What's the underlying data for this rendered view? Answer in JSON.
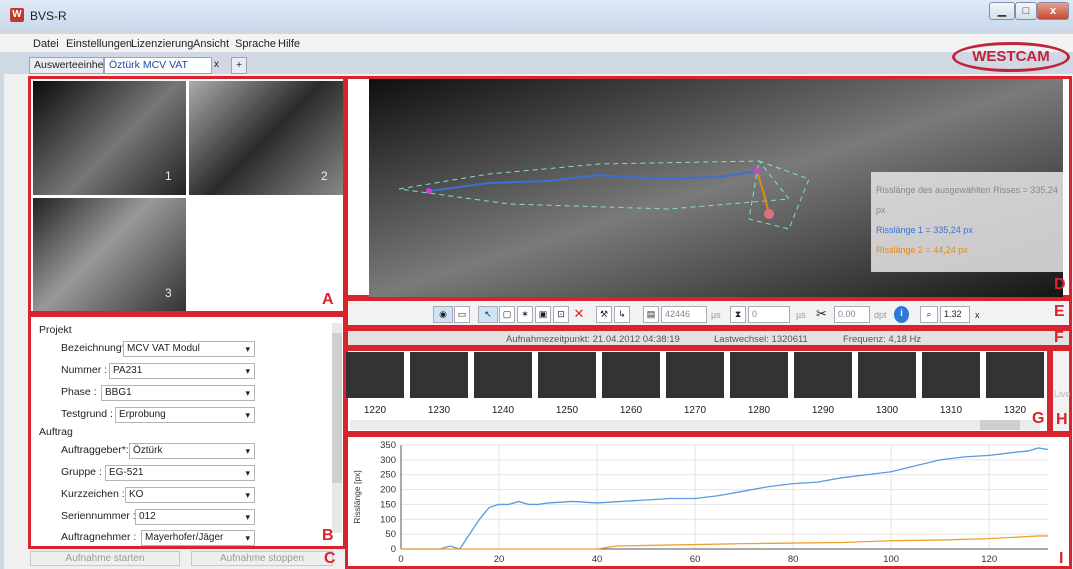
{
  "window": {
    "title": "BVS-R",
    "minimize": "▁",
    "maximize": "□",
    "close": "x"
  },
  "logo": "WESTCAM",
  "menu": [
    "Datei",
    "Einstellungen",
    "Lizenzierung",
    "Ansicht",
    "Sprache",
    "Hilfe"
  ],
  "tabs": {
    "first": "Auswerteeinheit",
    "active": "Öztürk MCV VAT Modul",
    "close": "x",
    "add": "+"
  },
  "labels": {
    "A": "A",
    "B": "B",
    "C": "C",
    "D": "D",
    "E": "E",
    "F": "F",
    "G": "G",
    "H": "H",
    "I": "I"
  },
  "thumbnails": [
    "1",
    "2",
    "3"
  ],
  "overlay": {
    "selected": "Risslänge des ausgewählten Risses = 335,24 px",
    "crack1": "Risslänge 1 = 335,24 px",
    "crack2": "Risslänge 2 = 44,24 px",
    "crack1_color": "#3b6fd6",
    "crack2_color": "#e08a1a"
  },
  "form": {
    "projekt": {
      "header": "Projekt",
      "bezeichnung_label": "Bezeichnung*:",
      "bezeichnung": "MCV VAT Modul",
      "nummer_label": "Nummer :",
      "nummer": "PA231",
      "phase_label": "Phase :",
      "phase": "BBG1",
      "testgrund_label": "Testgrund :",
      "testgrund": "Erprobung"
    },
    "auftrag": {
      "header": "Auftrag",
      "auftraggeber_label": "Auftraggeber*:",
      "auftraggeber": "Öztürk",
      "gruppe_label": "Gruppe :",
      "gruppe": "EG-521",
      "kurzzeichen_label": "Kurzzeichen :",
      "kurzzeichen": "KO",
      "seriennummer_label": "Seriennummer :",
      "seriennummer": "012",
      "auftragnehmer_label": "Auftragnehmer :",
      "auftragnehmer": "Mayerhofer/Jäger"
    }
  },
  "buttons": {
    "start": "Aufnahme starten",
    "stop": "Aufnahme stoppen"
  },
  "toolbar": {
    "exposure": "42446",
    "exposure_unit": "µs",
    "delay": "0",
    "delay_unit": "µs",
    "focus": "0.00",
    "focus_unit": "dpt",
    "zoom": "1.32",
    "zoom_unit": "x"
  },
  "info": {
    "time": "Aufnahmezeitpunkt: 21.04.2012 04:38:19",
    "load": "Lastwechsel: 1320611",
    "freq": "Frequenz: 4,18 Hz"
  },
  "frames": [
    "1220",
    "1230",
    "1240",
    "1250",
    "1260",
    "1270",
    "1280",
    "1290",
    "1300",
    "1310",
    "1320"
  ],
  "live": "Live",
  "chart_data": {
    "type": "line",
    "ylabel": "Risslänge [px]",
    "xlim": [
      0,
      132
    ],
    "ylim": [
      0,
      350
    ],
    "xticks": [
      0,
      20,
      40,
      60,
      80,
      100,
      120
    ],
    "yticks": [
      0,
      50,
      100,
      150,
      200,
      250,
      300,
      350
    ],
    "series": [
      {
        "color": "#5a9be0",
        "x": [
          0,
          8,
          10,
          12,
          14,
          16,
          18,
          20,
          22,
          24,
          26,
          28,
          30,
          35,
          40,
          45,
          50,
          55,
          60,
          65,
          70,
          75,
          80,
          85,
          90,
          95,
          100,
          105,
          110,
          115,
          120,
          125,
          128,
          130,
          132
        ],
        "values": [
          0,
          0,
          10,
          0,
          50,
          100,
          140,
          150,
          150,
          160,
          150,
          150,
          155,
          160,
          155,
          160,
          165,
          170,
          170,
          180,
          195,
          210,
          220,
          225,
          240,
          250,
          260,
          280,
          300,
          310,
          315,
          325,
          330,
          340,
          335
        ]
      },
      {
        "color": "#f0a030",
        "x": [
          0,
          40,
          42,
          44,
          50,
          60,
          70,
          80,
          90,
          100,
          110,
          120,
          128,
          130,
          132
        ],
        "values": [
          0,
          0,
          5,
          10,
          12,
          15,
          18,
          20,
          22,
          28,
          30,
          35,
          42,
          44,
          44
        ]
      }
    ]
  }
}
